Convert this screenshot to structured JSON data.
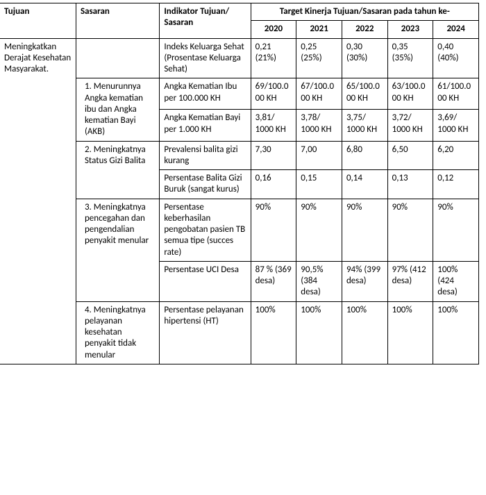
{
  "headers": {
    "tujuan": "Tujuan",
    "sasaran": "Sasaran",
    "indikator": "Indikator Tujuan/ Sasaran",
    "target_span": "Target Kinerja Tujuan/Sasaran pada tahun ke-",
    "y2020": "2020",
    "y2021": "2021",
    "y2022": "2022",
    "y2023": "2023",
    "y2024": "2024"
  },
  "tujuan": "Meningkatkan Derajat Kesehatan Masyarakat.",
  "rows": {
    "r1": {
      "sasaran": "",
      "indikator": "Indeks Keluarga Sehat (Prosentase Keluarga Sehat)",
      "y2020": "0,21 (21%)",
      "y2021": "0,25 (25%)",
      "y2022": "0,30 (30%)",
      "y2023": "0,35 (35%)",
      "y2024": "0,40 (40%)"
    },
    "s1_label": "1. Menurunnya Angka kematian ibu dan Angka kematian Bayi (AKB)",
    "r2": {
      "indikator": "Angka Kematian Ibu per 100.000 KH",
      "y2020": "69/100.000 KH",
      "y2021": "67/100.000 KH",
      "y2022": "65/100.000 KH",
      "y2023": "63/100.000 KH",
      "y2024": "61/100.000 KH"
    },
    "r3": {
      "indikator": "Angka Kematian Bayi per 1.000 KH",
      "y2020": "3,81/ 1000 KH",
      "y2021": "3,78/ 1000 KH",
      "y2022": "3,75/ 1000 KH",
      "y2023": "3,72/ 1000 KH",
      "y2024": "3,69/ 1000 KH"
    },
    "s2_label": "2. Meningkatnya Status Gizi Balita",
    "r4": {
      "indikator": "Prevalensi balita gizi kurang",
      "y2020": "7,30",
      "y2021": "7,00",
      "y2022": "6,80",
      "y2023": "6,50",
      "y2024": "6,20"
    },
    "r5": {
      "indikator": "Persentase Balita Gizi Buruk (sangat kurus)",
      "y2020": "0,16",
      "y2021": "0,15",
      "y2022": "0,14",
      "y2023": "0,13",
      "y2024": "0,12"
    },
    "s3_label": "3. Meningkatnya pencegahan dan pengendalian penyakit menular",
    "r6": {
      "indikator": "Persentase keberhasilan pengobatan pasien TB semua tipe (succes rate)",
      "y2020": "90%",
      "y2021": "90%",
      "y2022": "90%",
      "y2023": "90%",
      "y2024": "90%"
    },
    "r7": {
      "indikator": "Persentase UCI Desa",
      "y2020": "87 % (369 desa)",
      "y2021": "90,5% (384 desa)",
      "y2022": "94% (399 desa)",
      "y2023": "97% (412 desa)",
      "y2024": "100% (424 desa)"
    },
    "s4_label": "4. Meningkatnya pelayanan kesehatan penyakit tidak menular",
    "r8": {
      "indikator": "Persentase pelayanan hipertensi (HT)",
      "y2020": "100%",
      "y2021": "100%",
      "y2022": "100%",
      "y2023": "100%",
      "y2024": "100%"
    }
  }
}
